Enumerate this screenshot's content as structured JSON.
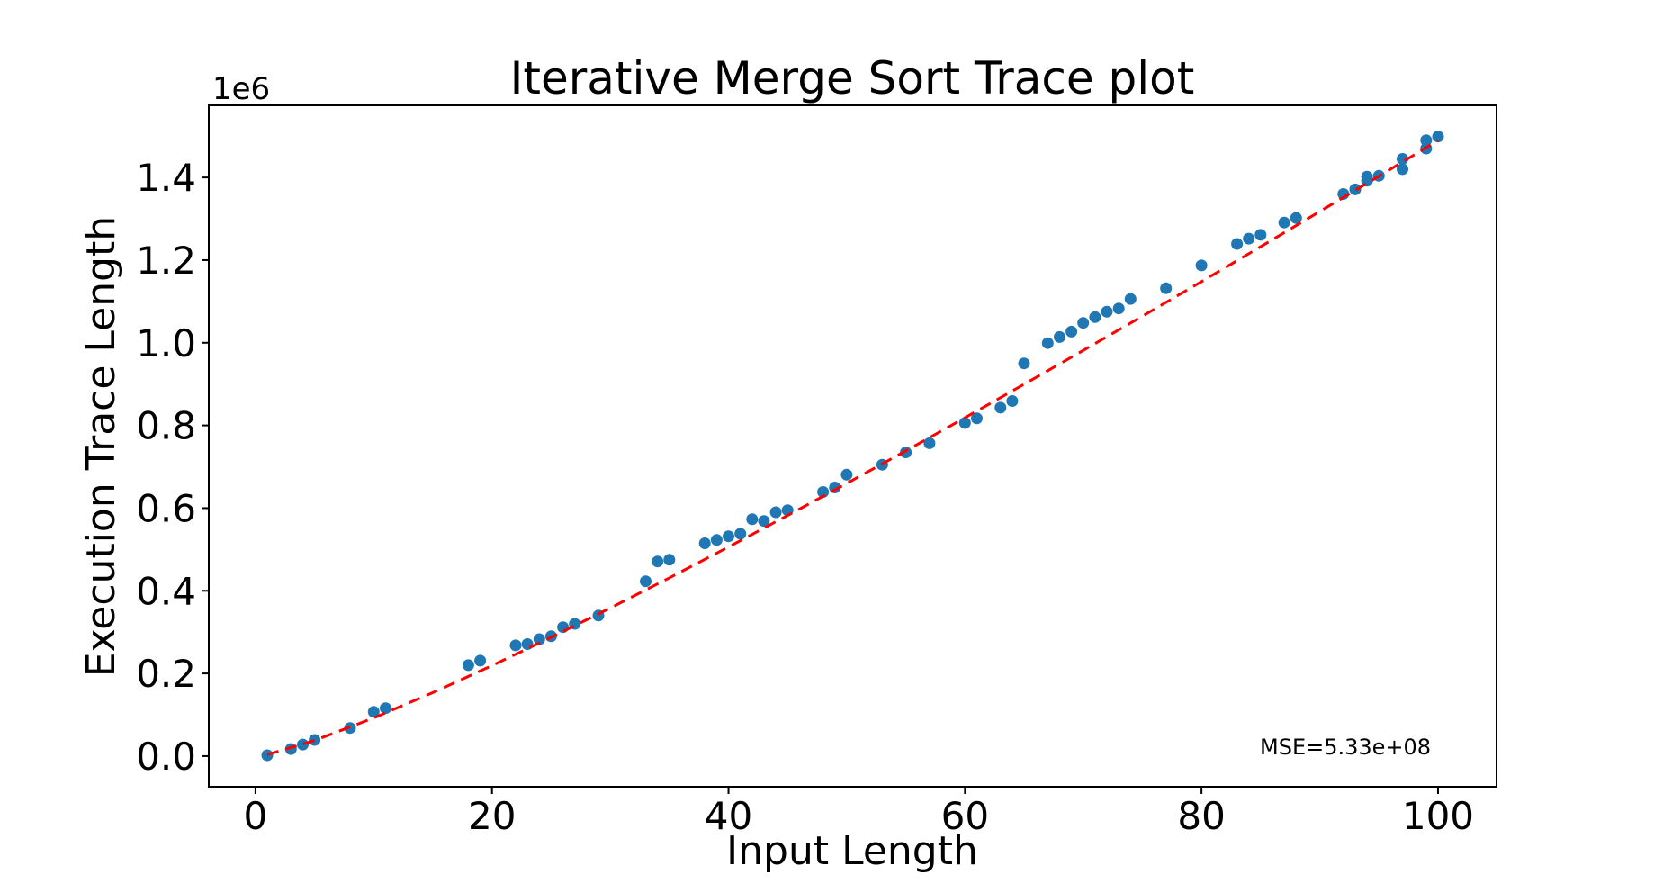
{
  "chart_data": {
    "type": "scatter",
    "title": "Iterative Merge Sort Trace plot",
    "xlabel": "Input Length",
    "ylabel": "Execution Trace Length",
    "y_offset_label": "1e6",
    "annotation": "MSE=5.33e+08",
    "grid": false,
    "legend": null,
    "xlim": [
      -3.95,
      104.95
    ],
    "ylim": [
      -74200,
      1574500
    ],
    "x_ticks": [
      0,
      20,
      40,
      60,
      80,
      100
    ],
    "y_ticks": [
      0,
      200000,
      400000,
      600000,
      800000,
      1000000,
      1200000,
      1400000
    ],
    "y_tick_labels": [
      "0.0",
      "0.2",
      "0.4",
      "0.6",
      "0.8",
      "1.0",
      "1.2",
      "1.4"
    ],
    "colors": {
      "point": "#1f77b4",
      "fit_line": "#ff0000",
      "text": "#000000",
      "axes": "#000000",
      "background": "#ffffff"
    },
    "points": [
      [
        1,
        2000
      ],
      [
        3,
        17000
      ],
      [
        4,
        28000
      ],
      [
        5,
        39000
      ],
      [
        8,
        68000
      ],
      [
        10,
        107000
      ],
      [
        11,
        116000
      ],
      [
        18,
        220000
      ],
      [
        19,
        231000
      ],
      [
        22,
        268000
      ],
      [
        23,
        271000
      ],
      [
        24,
        283000
      ],
      [
        25,
        290000
      ],
      [
        26,
        312000
      ],
      [
        27,
        320000
      ],
      [
        29,
        340000
      ],
      [
        33,
        423000
      ],
      [
        34,
        471000
      ],
      [
        35,
        475000
      ],
      [
        38,
        515000
      ],
      [
        39,
        523000
      ],
      [
        40,
        532000
      ],
      [
        41,
        538000
      ],
      [
        42,
        573000
      ],
      [
        43,
        569000
      ],
      [
        44,
        590000
      ],
      [
        45,
        595000
      ],
      [
        48,
        639000
      ],
      [
        49,
        650000
      ],
      [
        50,
        681000
      ],
      [
        53,
        705000
      ],
      [
        55,
        735000
      ],
      [
        57,
        757000
      ],
      [
        60,
        806000
      ],
      [
        61,
        817000
      ],
      [
        63,
        843000
      ],
      [
        64,
        859000
      ],
      [
        65,
        950000
      ],
      [
        67,
        999000
      ],
      [
        68,
        1014000
      ],
      [
        69,
        1027000
      ],
      [
        70,
        1048000
      ],
      [
        71,
        1062000
      ],
      [
        72,
        1075000
      ],
      [
        73,
        1083000
      ],
      [
        74,
        1106000
      ],
      [
        77,
        1132000
      ],
      [
        80,
        1187000
      ],
      [
        83,
        1239000
      ],
      [
        84,
        1252000
      ],
      [
        85,
        1261000
      ],
      [
        87,
        1291000
      ],
      [
        88,
        1302000
      ],
      [
        92,
        1360000
      ],
      [
        93,
        1371000
      ],
      [
        94,
        1392000
      ],
      [
        94,
        1402000
      ],
      [
        95,
        1404000
      ],
      [
        97,
        1420000
      ],
      [
        97,
        1445000
      ],
      [
        99,
        1470000
      ],
      [
        99,
        1490000
      ],
      [
        100,
        1499000
      ]
    ],
    "fit_line": {
      "style": "dashed",
      "samples": [
        [
          1,
          3600
        ],
        [
          5,
          37700
        ],
        [
          10,
          92500
        ],
        [
          15,
          153600
        ],
        [
          20,
          219000
        ],
        [
          25,
          287400
        ],
        [
          30,
          358300
        ],
        [
          35,
          431200
        ],
        [
          40,
          506000
        ],
        [
          45,
          582200
        ],
        [
          50,
          659800
        ],
        [
          55,
          738600
        ],
        [
          60,
          818600
        ],
        [
          65,
          899600
        ],
        [
          70,
          981500
        ],
        [
          75,
          1064300
        ],
        [
          80,
          1147900
        ],
        [
          85,
          1232300
        ],
        [
          90,
          1317400
        ],
        [
          95,
          1403200
        ],
        [
          100,
          1489600
        ]
      ]
    }
  }
}
